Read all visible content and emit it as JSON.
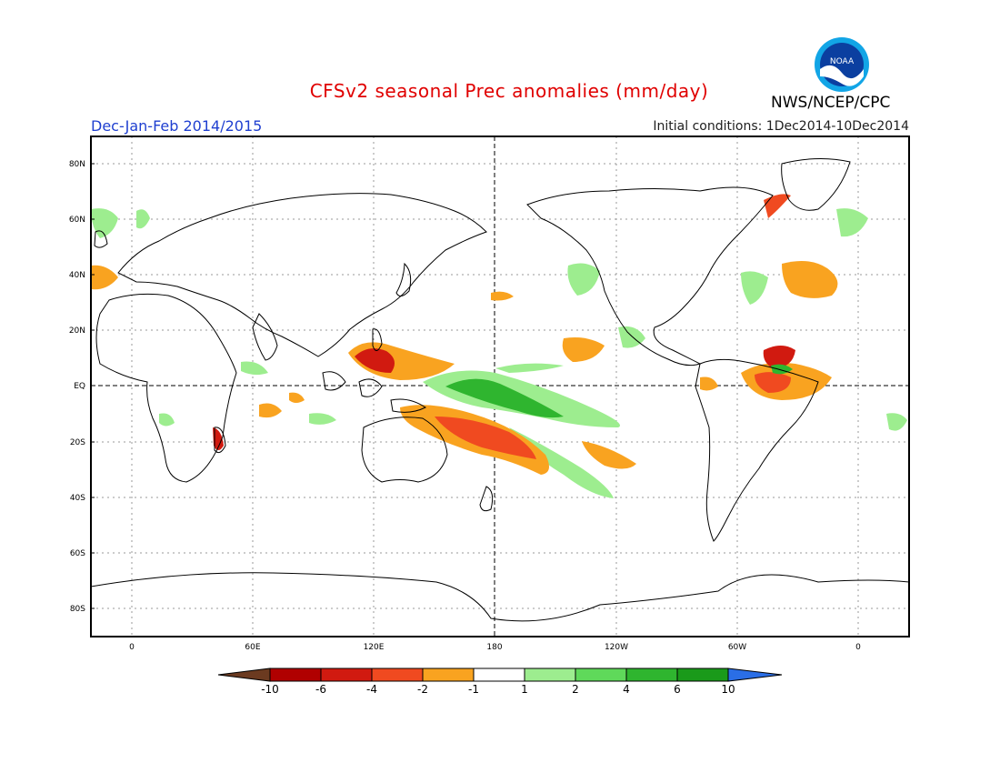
{
  "header": {
    "title": "CFSv2 seasonal Prec anomalies (mm/day)",
    "agency": "NWS/NCEP/CPC",
    "period": "Dec-Jan-Feb 2014/2015",
    "initial_conditions": "Initial conditions: 1Dec2014-10Dec2014",
    "logo_text": "NOAA"
  },
  "map": {
    "lat_labels": [
      "80N",
      "60N",
      "40N",
      "20N",
      "EQ",
      "20S",
      "40S",
      "60S",
      "80S"
    ],
    "lon_labels": [
      "0",
      "60E",
      "120E",
      "180",
      "120W",
      "60W",
      "0"
    ]
  },
  "colorbar": {
    "labels": [
      "-10",
      "-6",
      "-4",
      "-2",
      "-1",
      "1",
      "2",
      "4",
      "6",
      "10"
    ],
    "colors": [
      "#6b3a20",
      "#b00000",
      "#d11a10",
      "#f04a20",
      "#f9a320",
      "#ffffff",
      "#9ded8f",
      "#5fd95a",
      "#2fb52f",
      "#1a9a1a",
      "#2a6ee6"
    ]
  }
}
